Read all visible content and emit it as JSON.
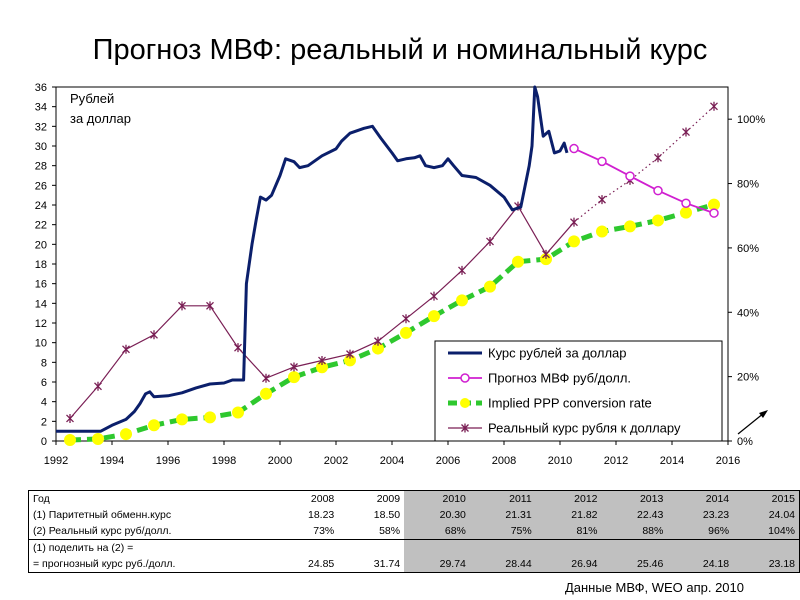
{
  "title": "Прогноз МВФ: реальный и номинальный курс",
  "chart_data": {
    "type": "line",
    "x_ticks": [
      1992,
      1994,
      1996,
      1998,
      2000,
      2002,
      2004,
      2006,
      2008,
      2010,
      2012,
      2014,
      2016
    ],
    "y_ticks": [
      0,
      2,
      4,
      6,
      8,
      10,
      12,
      14,
      16,
      18,
      20,
      22,
      24,
      26,
      28,
      30,
      32,
      34,
      36
    ],
    "y2_ticks": [
      "0%",
      "20%",
      "40%",
      "60%",
      "80%",
      "100%"
    ],
    "xlim": [
      1992,
      2016
    ],
    "ylim": [
      0,
      36
    ],
    "y2lim": [
      0,
      1.1
    ],
    "y_axis_label": "Рублей за доллар",
    "grid": false,
    "legend_position": "lower right",
    "series": [
      {
        "name": "Курс рублей за доллар",
        "axis": "left",
        "color": "#0b1f6b",
        "style": "solid",
        "points": [
          [
            1992.0,
            1.0
          ],
          [
            1993.0,
            1.0
          ],
          [
            1993.6,
            1.0
          ],
          [
            1994.0,
            1.6
          ],
          [
            1994.5,
            2.2
          ],
          [
            1994.8,
            3.0
          ],
          [
            1995.0,
            3.8
          ],
          [
            1995.2,
            4.8
          ],
          [
            1995.35,
            5.0
          ],
          [
            1995.5,
            4.5
          ],
          [
            1996.0,
            4.6
          ],
          [
            1996.5,
            4.9
          ],
          [
            1997.0,
            5.4
          ],
          [
            1997.5,
            5.8
          ],
          [
            1998.0,
            5.9
          ],
          [
            1998.3,
            6.2
          ],
          [
            1998.7,
            6.2
          ],
          [
            1998.8,
            16.0
          ],
          [
            1999.0,
            20.0
          ],
          [
            1999.15,
            22.5
          ],
          [
            1999.3,
            24.8
          ],
          [
            1999.5,
            24.5
          ],
          [
            1999.7,
            25.0
          ],
          [
            2000.0,
            27.0
          ],
          [
            2000.2,
            28.7
          ],
          [
            2000.5,
            28.4
          ],
          [
            2000.7,
            27.8
          ],
          [
            2001.0,
            28.0
          ],
          [
            2001.5,
            29.0
          ],
          [
            2002.0,
            29.7
          ],
          [
            2002.2,
            30.5
          ],
          [
            2002.5,
            31.3
          ],
          [
            2003.0,
            31.8
          ],
          [
            2003.3,
            32.0
          ],
          [
            2003.6,
            30.8
          ],
          [
            2004.0,
            29.3
          ],
          [
            2004.2,
            28.5
          ],
          [
            2004.5,
            28.7
          ],
          [
            2004.8,
            28.8
          ],
          [
            2005.0,
            29.0
          ],
          [
            2005.2,
            28.0
          ],
          [
            2005.5,
            27.8
          ],
          [
            2005.8,
            28.0
          ],
          [
            2006.0,
            28.7
          ],
          [
            2006.2,
            28.0
          ],
          [
            2006.5,
            27.0
          ],
          [
            2007.0,
            26.8
          ],
          [
            2007.5,
            26.0
          ],
          [
            2008.0,
            24.8
          ],
          [
            2008.3,
            23.5
          ],
          [
            2008.6,
            23.8
          ],
          [
            2008.9,
            28.0
          ],
          [
            2009.0,
            30.0
          ],
          [
            2009.1,
            36.0
          ],
          [
            2009.2,
            35.0
          ],
          [
            2009.4,
            31.0
          ],
          [
            2009.6,
            31.5
          ],
          [
            2009.8,
            29.3
          ],
          [
            2010.0,
            29.5
          ],
          [
            2010.15,
            30.3
          ],
          [
            2010.25,
            29.3
          ]
        ]
      },
      {
        "name": "Прогноз МВФ руб/долл.",
        "axis": "left",
        "color": "#d01fd0",
        "style": "solid-open-circles",
        "points": [
          [
            2010.5,
            29.74
          ],
          [
            2011.5,
            28.44
          ],
          [
            2012.5,
            26.94
          ],
          [
            2013.5,
            25.46
          ],
          [
            2014.5,
            24.18
          ],
          [
            2015.5,
            23.18
          ]
        ]
      },
      {
        "name": "Implied PPP conversion rate",
        "axis": "left",
        "color": "#2ec82e",
        "marker_color": "#ffff00",
        "style": "dashed-circles",
        "points": [
          [
            1992.5,
            0.1
          ],
          [
            1993.5,
            0.2
          ],
          [
            1994.5,
            0.7
          ],
          [
            1995.5,
            1.6
          ],
          [
            1996.5,
            2.2
          ],
          [
            1997.5,
            2.4
          ],
          [
            1998.5,
            2.9
          ],
          [
            1999.5,
            4.8
          ],
          [
            2000.5,
            6.5
          ],
          [
            2001.5,
            7.5
          ],
          [
            2002.5,
            8.2
          ],
          [
            2003.5,
            9.4
          ],
          [
            2004.5,
            11.0
          ],
          [
            2005.5,
            12.7
          ],
          [
            2006.5,
            14.3
          ],
          [
            2007.5,
            15.7
          ],
          [
            2008.5,
            18.23
          ],
          [
            2009.5,
            18.5
          ],
          [
            2010.5,
            20.3
          ],
          [
            2011.5,
            21.31
          ],
          [
            2012.5,
            21.82
          ],
          [
            2013.5,
            22.43
          ],
          [
            2014.5,
            23.23
          ],
          [
            2015.5,
            24.04
          ]
        ]
      },
      {
        "name": "Реальный курс рубля к доллару",
        "axis": "right",
        "color": "#7a1f55",
        "style": "solid-star",
        "points": [
          [
            1992.5,
            0.07
          ],
          [
            1993.5,
            0.17
          ],
          [
            1994.5,
            0.285
          ],
          [
            1995.5,
            0.33
          ],
          [
            1996.5,
            0.42
          ],
          [
            1997.5,
            0.42
          ],
          [
            1998.5,
            0.29
          ],
          [
            1999.5,
            0.195
          ],
          [
            2000.5,
            0.23
          ],
          [
            2001.5,
            0.25
          ],
          [
            2002.5,
            0.27
          ],
          [
            2003.5,
            0.31
          ],
          [
            2004.5,
            0.38
          ],
          [
            2005.5,
            0.45
          ],
          [
            2006.5,
            0.53
          ],
          [
            2007.5,
            0.62
          ],
          [
            2008.5,
            0.73
          ],
          [
            2009.5,
            0.58
          ],
          [
            2010.5,
            0.68
          ],
          [
            2011.5,
            0.75
          ],
          [
            2012.5,
            0.81
          ],
          [
            2013.5,
            0.88
          ],
          [
            2014.5,
            0.96
          ],
          [
            2015.5,
            1.04
          ]
        ]
      }
    ]
  },
  "table": {
    "header": {
      "label": "Год",
      "values": [
        "2008",
        "2009",
        "2010",
        "2011",
        "2012",
        "2013",
        "2014",
        "2015"
      ]
    },
    "rows": [
      {
        "label": "(1) Паритетный обменн.курс",
        "values": [
          "18.23",
          "18.50",
          "20.30",
          "21.31",
          "21.82",
          "22.43",
          "23.23",
          "24.04"
        ]
      },
      {
        "label": "(2) Реальный курс руб/долл.",
        "values": [
          "73%",
          "58%",
          "68%",
          "75%",
          "81%",
          "88%",
          "96%",
          "104%"
        ]
      },
      {
        "label": "(1) поделить на (2) =",
        "values": [
          "",
          "",
          "",
          "",
          "",
          "",
          "",
          ""
        ]
      },
      {
        "label": "  = прогнозный курс руб./долл.",
        "values": [
          "24.85",
          "31.74",
          "29.74",
          "28.44",
          "26.94",
          "25.46",
          "24.18",
          "23.18"
        ]
      }
    ]
  },
  "source": "Данные МВФ, WEO апр. 2010"
}
